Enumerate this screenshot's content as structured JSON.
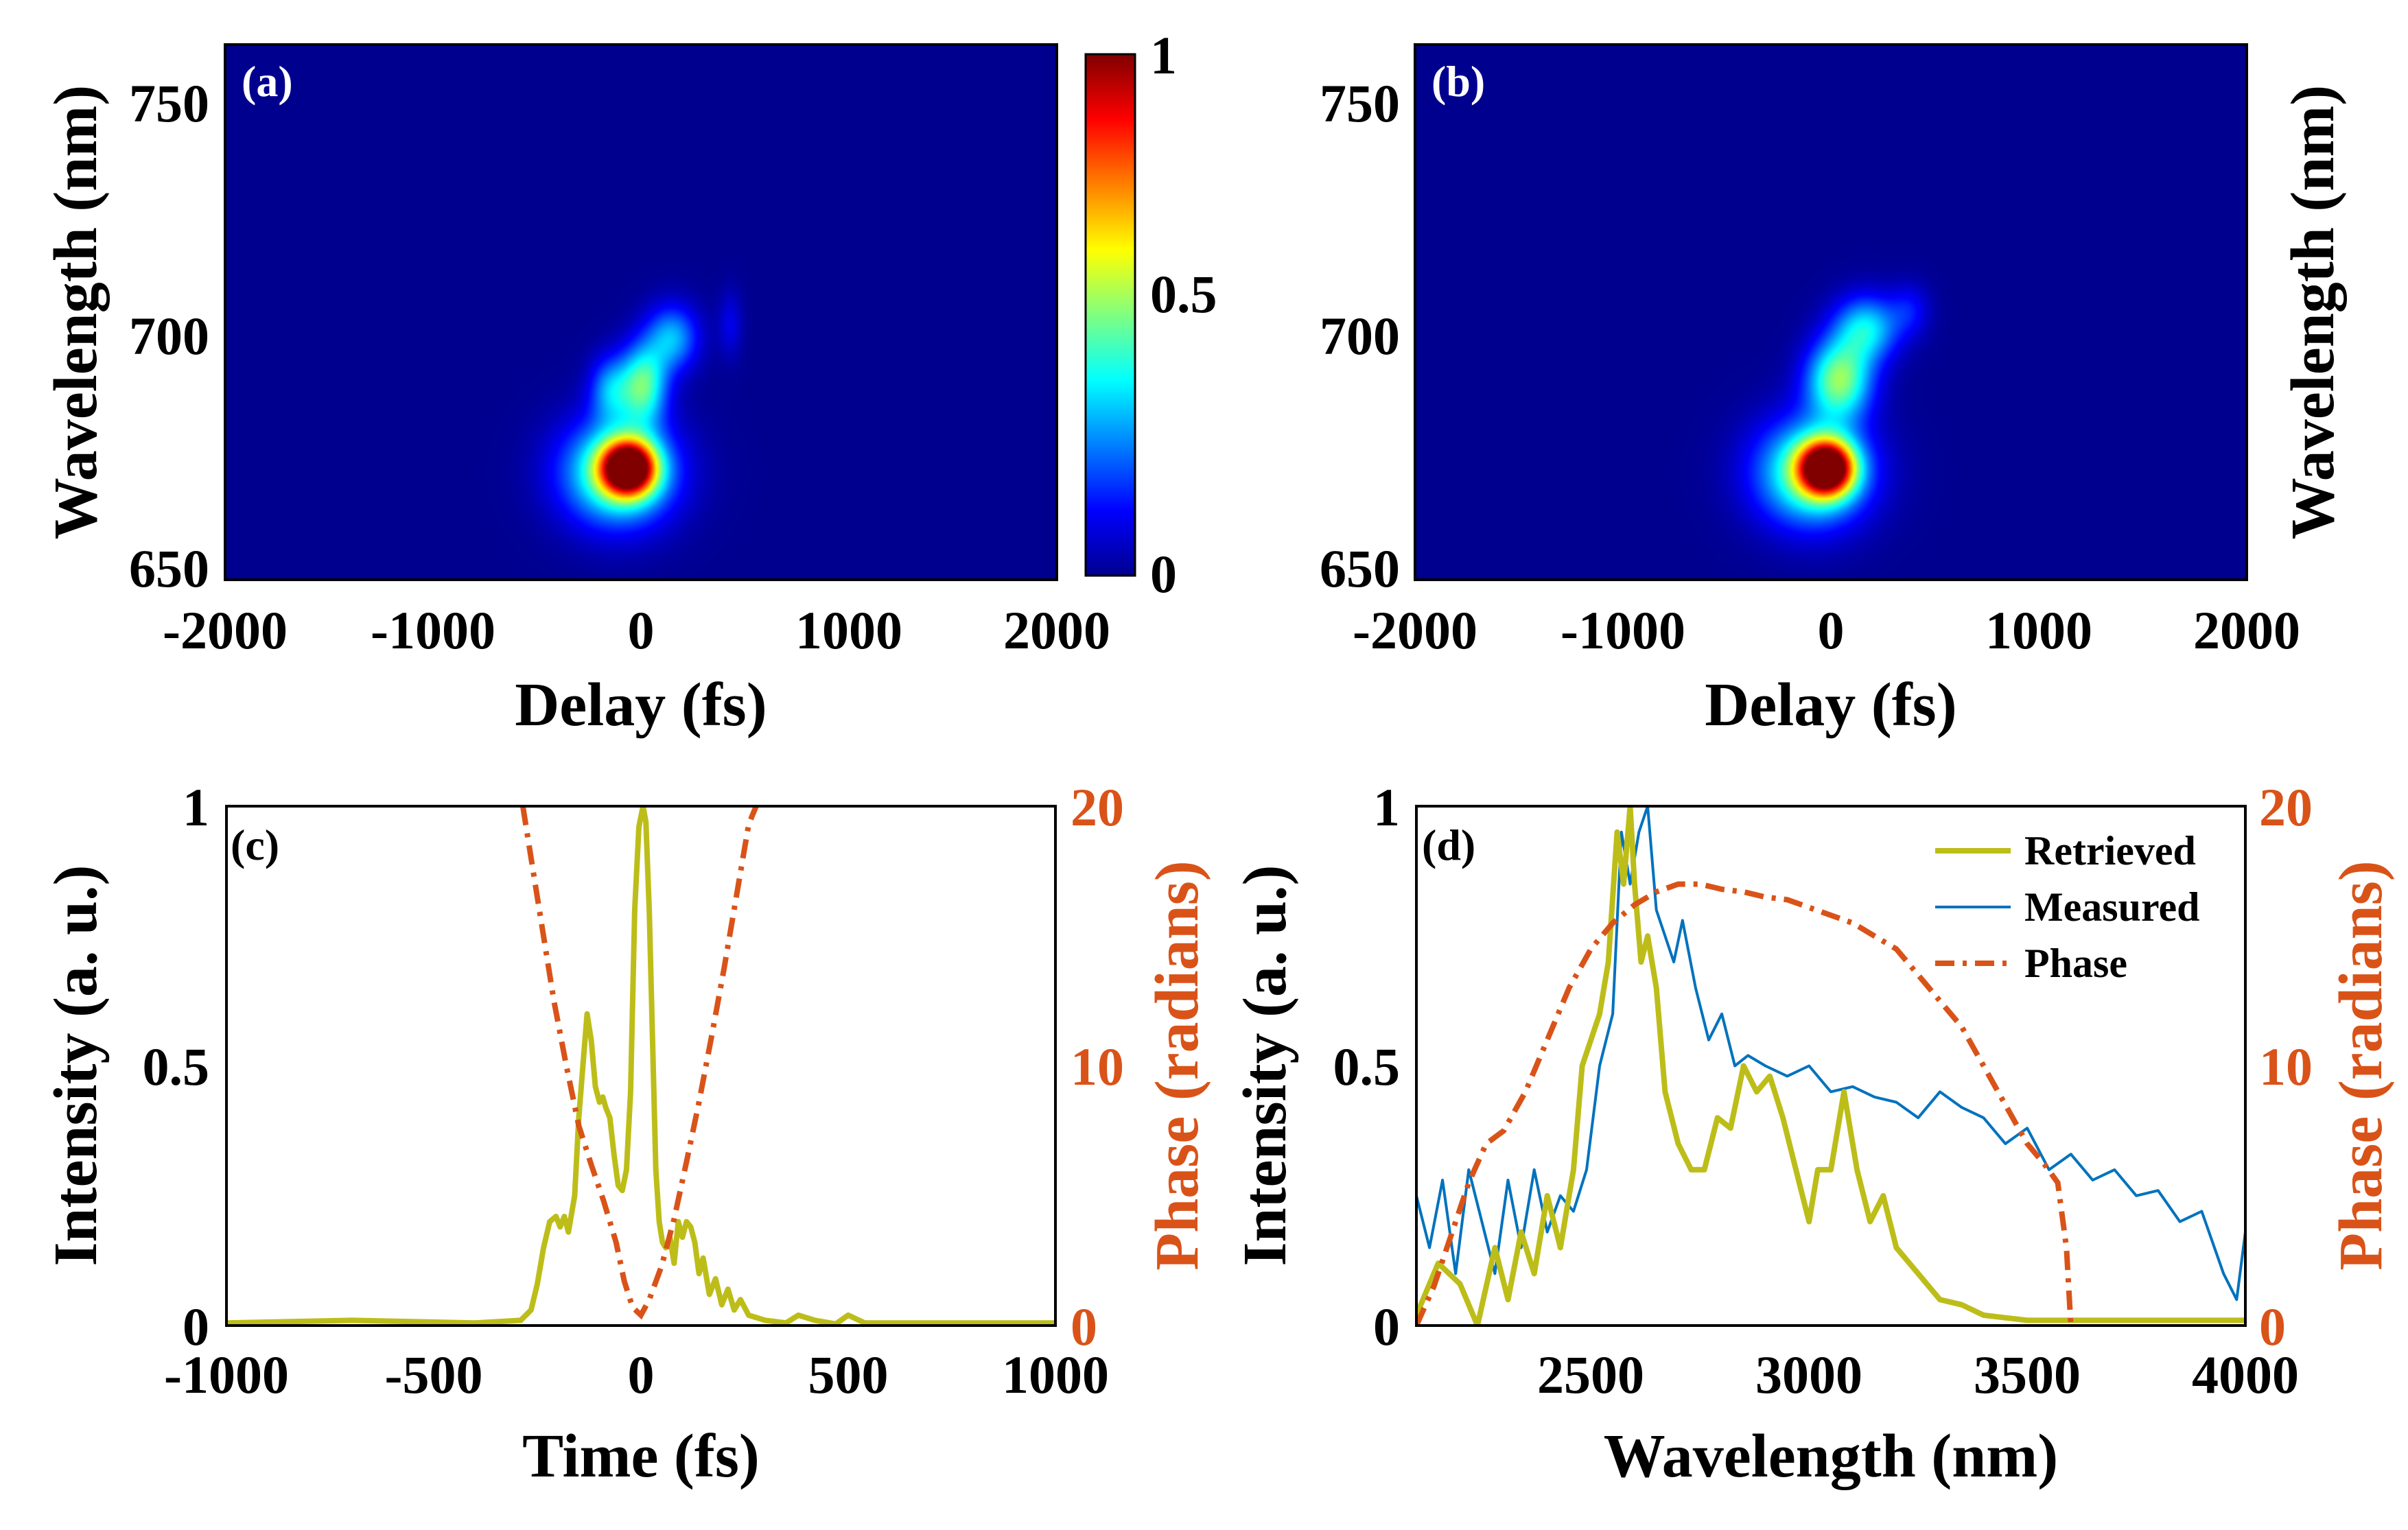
{
  "chart_data": [
    {
      "id": "a",
      "type": "heatmap",
      "panel_label": "(a)",
      "xlabel": "Delay (fs)",
      "ylabel": "Wavelength (nm)",
      "xlim": [
        -2000,
        2000
      ],
      "ylim": [
        645,
        760
      ],
      "xticks": [
        "-2000",
        "-1000",
        "0",
        "1000",
        "2000"
      ],
      "xtick_values": [
        -2000,
        -1000,
        0,
        1000,
        2000
      ],
      "yticks": [
        "650",
        "700",
        "750"
      ],
      "ytick_values": [
        650,
        700,
        750
      ],
      "background_color": "#00008f",
      "colorbar": {
        "min": 0,
        "max": 1,
        "ticks": [
          "0",
          "0.5",
          "1"
        ],
        "tick_values": [
          0,
          0.5,
          1
        ]
      },
      "blobs": [
        {
          "delay": -60,
          "wavelength": 669,
          "sd_delay": 90,
          "sd_wl": 4,
          "amp": 1.0
        },
        {
          "delay": -110,
          "wavelength": 668,
          "sd_delay": 190,
          "sd_wl": 8,
          "amp": 0.5
        },
        {
          "delay": 10,
          "wavelength": 687,
          "sd_delay": 80,
          "sd_wl": 6,
          "amp": 0.45
        },
        {
          "delay": 150,
          "wavelength": 697,
          "sd_delay": 90,
          "sd_wl": 5,
          "amp": 0.3
        },
        {
          "delay": -150,
          "wavelength": 686,
          "sd_delay": 70,
          "sd_wl": 5,
          "amp": 0.25
        },
        {
          "delay": 430,
          "wavelength": 700,
          "sd_delay": 40,
          "sd_wl": 5,
          "amp": 0.1
        }
      ]
    },
    {
      "id": "b",
      "type": "heatmap",
      "panel_label": "(b)",
      "xlabel": "Delay (fs)",
      "ylabel": "Wavelength (nm)",
      "xlim": [
        -2000,
        2000
      ],
      "ylim": [
        645,
        760
      ],
      "xticks": [
        "-2000",
        "-1000",
        "0",
        "1000",
        "2000"
      ],
      "xtick_values": [
        -2000,
        -1000,
        0,
        1000,
        2000
      ],
      "yticks": [
        "650",
        "700",
        "750"
      ],
      "ytick_values": [
        650,
        700,
        750
      ],
      "background_color": "#00008f",
      "blobs": [
        {
          "delay": -20,
          "wavelength": 669,
          "sd_delay": 90,
          "sd_wl": 4,
          "amp": 1.0
        },
        {
          "delay": -90,
          "wavelength": 668,
          "sd_delay": 190,
          "sd_wl": 8,
          "amp": 0.5
        },
        {
          "delay": 40,
          "wavelength": 688,
          "sd_delay": 110,
          "sd_wl": 6,
          "amp": 0.5
        },
        {
          "delay": 170,
          "wavelength": 699,
          "sd_delay": 110,
          "sd_wl": 5,
          "amp": 0.35
        },
        {
          "delay": 380,
          "wavelength": 703,
          "sd_delay": 70,
          "sd_wl": 4,
          "amp": 0.12
        }
      ]
    },
    {
      "id": "c",
      "type": "line",
      "panel_label": "(c)",
      "xlabel": "Time (fs)",
      "ylabel": "Intensity (a. u.)",
      "ylabel_right": "Phase (radians)",
      "xlim": [
        -1000,
        1000
      ],
      "ylim": [
        0,
        1
      ],
      "ylim_right": [
        0,
        20
      ],
      "xticks": [
        "-1000",
        "-500",
        "0",
        "500",
        "1000"
      ],
      "xtick_values": [
        -1000,
        -500,
        0,
        500,
        1000
      ],
      "yticks": [
        "0",
        "0.5",
        "1"
      ],
      "ytick_values": [
        0,
        0.5,
        1
      ],
      "yticks_right": [
        "0",
        "10",
        "20"
      ],
      "ytick_values_right": [
        0,
        10,
        20
      ],
      "series": [
        {
          "name": "Intensity",
          "color": "#bdbd1a",
          "style": "solid",
          "axis": "left",
          "x": [
            -1000,
            -700,
            -400,
            -290,
            -265,
            -250,
            -235,
            -220,
            -205,
            -195,
            -185,
            -175,
            -160,
            -150,
            -140,
            -130,
            -120,
            -110,
            -100,
            -92,
            -85,
            -75,
            -65,
            -55,
            -45,
            -35,
            -25,
            -15,
            -5,
            5,
            12,
            20,
            28,
            36,
            44,
            52,
            60,
            70,
            80,
            90,
            100,
            110,
            120,
            130,
            140,
            150,
            165,
            180,
            195,
            210,
            225,
            240,
            260,
            300,
            350,
            380,
            420,
            470,
            500,
            540,
            600,
            800,
            1000
          ],
          "y": [
            0.005,
            0.01,
            0.005,
            0.01,
            0.03,
            0.08,
            0.15,
            0.2,
            0.21,
            0.19,
            0.21,
            0.18,
            0.25,
            0.4,
            0.5,
            0.6,
            0.55,
            0.46,
            0.43,
            0.44,
            0.42,
            0.4,
            0.33,
            0.27,
            0.26,
            0.3,
            0.45,
            0.8,
            0.96,
            1.0,
            0.97,
            0.8,
            0.55,
            0.3,
            0.2,
            0.16,
            0.15,
            0.17,
            0.12,
            0.2,
            0.17,
            0.2,
            0.19,
            0.16,
            0.1,
            0.13,
            0.06,
            0.09,
            0.04,
            0.07,
            0.03,
            0.05,
            0.02,
            0.01,
            0.005,
            0.02,
            0.01,
            0.003,
            0.02,
            0.005,
            0.005,
            0.005,
            0.005
          ]
        },
        {
          "name": "Phase",
          "color": "#d95319",
          "style": "dashdot",
          "axis": "right",
          "x": [
            -285,
            -270,
            -240,
            -210,
            -180,
            -150,
            -120,
            -90,
            -60,
            -40,
            -20,
            0,
            20,
            50,
            80,
            110,
            140,
            170,
            200,
            230,
            260,
            278
          ],
          "y": [
            20,
            18.5,
            15.5,
            12.5,
            10,
            7.7,
            6.2,
            4.8,
            3.2,
            1.7,
            0.7,
            0.4,
            1.0,
            2.3,
            4.1,
            6.3,
            8.6,
            11.1,
            13.7,
            16.5,
            19.3,
            20
          ]
        }
      ]
    },
    {
      "id": "d",
      "type": "line",
      "panel_label": "(d)",
      "xlabel": "Wavelength (nm)",
      "ylabel": "Intensity (a. u.)",
      "ylabel_right": "Phase (radians)",
      "xlim": [
        2100,
        4000
      ],
      "ylim": [
        0,
        1
      ],
      "ylim_right": [
        0,
        20
      ],
      "xticks": [
        "2500",
        "3000",
        "3500",
        "4000"
      ],
      "xtick_values": [
        2500,
        3000,
        3500,
        4000
      ],
      "yticks": [
        "0",
        "0.5",
        "1"
      ],
      "ytick_values": [
        0,
        0.5,
        1
      ],
      "yticks_right": [
        "0",
        "10",
        "20"
      ],
      "ytick_values_right": [
        0,
        10,
        20
      ],
      "legend": [
        "Retrieved",
        "Measured",
        "Phase"
      ],
      "series": [
        {
          "name": "Retrieved",
          "color": "#bdbd1a",
          "style": "solid",
          "width": "thick",
          "x": [
            2100,
            2150,
            2200,
            2240,
            2280,
            2310,
            2340,
            2370,
            2400,
            2430,
            2460,
            2480,
            2500,
            2520,
            2540,
            2560,
            2575,
            2590,
            2600,
            2615,
            2630,
            2650,
            2670,
            2700,
            2730,
            2760,
            2790,
            2820,
            2850,
            2880,
            2910,
            2940,
            2970,
            3000,
            3020,
            3050,
            3080,
            3110,
            3140,
            3170,
            3200,
            3250,
            3300,
            3350,
            3400,
            3500,
            3600,
            3800,
            4000
          ],
          "y": [
            0.02,
            0.12,
            0.08,
            0.0,
            0.15,
            0.05,
            0.18,
            0.1,
            0.25,
            0.15,
            0.3,
            0.5,
            0.55,
            0.6,
            0.7,
            0.95,
            0.85,
            1.0,
            0.85,
            0.7,
            0.75,
            0.65,
            0.45,
            0.35,
            0.3,
            0.3,
            0.4,
            0.38,
            0.5,
            0.45,
            0.48,
            0.4,
            0.3,
            0.2,
            0.3,
            0.3,
            0.45,
            0.3,
            0.2,
            0.25,
            0.15,
            0.1,
            0.05,
            0.04,
            0.02,
            0.01,
            0.01,
            0.01,
            0.01
          ]
        },
        {
          "name": "Measured",
          "color": "#0072bd",
          "style": "solid",
          "width": "thin",
          "x": [
            2100,
            2130,
            2160,
            2190,
            2220,
            2250,
            2280,
            2310,
            2340,
            2370,
            2400,
            2430,
            2460,
            2490,
            2520,
            2550,
            2570,
            2590,
            2610,
            2630,
            2650,
            2670,
            2690,
            2710,
            2740,
            2770,
            2800,
            2830,
            2860,
            2900,
            2950,
            3000,
            3050,
            3100,
            3150,
            3200,
            3250,
            3300,
            3350,
            3400,
            3450,
            3500,
            3550,
            3600,
            3650,
            3700,
            3750,
            3800,
            3850,
            3900,
            3950,
            3980,
            4000
          ],
          "y": [
            0.25,
            0.15,
            0.28,
            0.1,
            0.3,
            0.2,
            0.1,
            0.28,
            0.15,
            0.3,
            0.18,
            0.25,
            0.22,
            0.3,
            0.5,
            0.6,
            0.95,
            0.85,
            0.95,
            1.0,
            0.8,
            0.75,
            0.7,
            0.78,
            0.65,
            0.55,
            0.6,
            0.5,
            0.52,
            0.5,
            0.48,
            0.5,
            0.45,
            0.46,
            0.44,
            0.43,
            0.4,
            0.45,
            0.42,
            0.4,
            0.35,
            0.38,
            0.3,
            0.33,
            0.28,
            0.3,
            0.25,
            0.26,
            0.2,
            0.22,
            0.1,
            0.05,
            0.18
          ]
        },
        {
          "name": "Phase",
          "color": "#d95319",
          "style": "dashdot",
          "axis": "right",
          "x": [
            2100,
            2140,
            2180,
            2220,
            2260,
            2300,
            2350,
            2400,
            2450,
            2500,
            2550,
            2600,
            2650,
            2700,
            2750,
            2800,
            2850,
            2900,
            2950,
            3000,
            3050,
            3100,
            3150,
            3200,
            3250,
            3300,
            3350,
            3400,
            3450,
            3500,
            3540,
            3570,
            3590,
            3600
          ],
          "y": [
            0,
            1.5,
            3.5,
            5.5,
            7.0,
            7.5,
            9.0,
            11.0,
            13.0,
            14.5,
            15.5,
            16.2,
            16.7,
            17.0,
            17.0,
            16.8,
            16.7,
            16.5,
            16.4,
            16.1,
            15.8,
            15.5,
            15.0,
            14.5,
            13.5,
            12.5,
            11.5,
            10.0,
            8.5,
            7.0,
            6.2,
            5.5,
            3.0,
            0.0
          ]
        }
      ]
    }
  ]
}
